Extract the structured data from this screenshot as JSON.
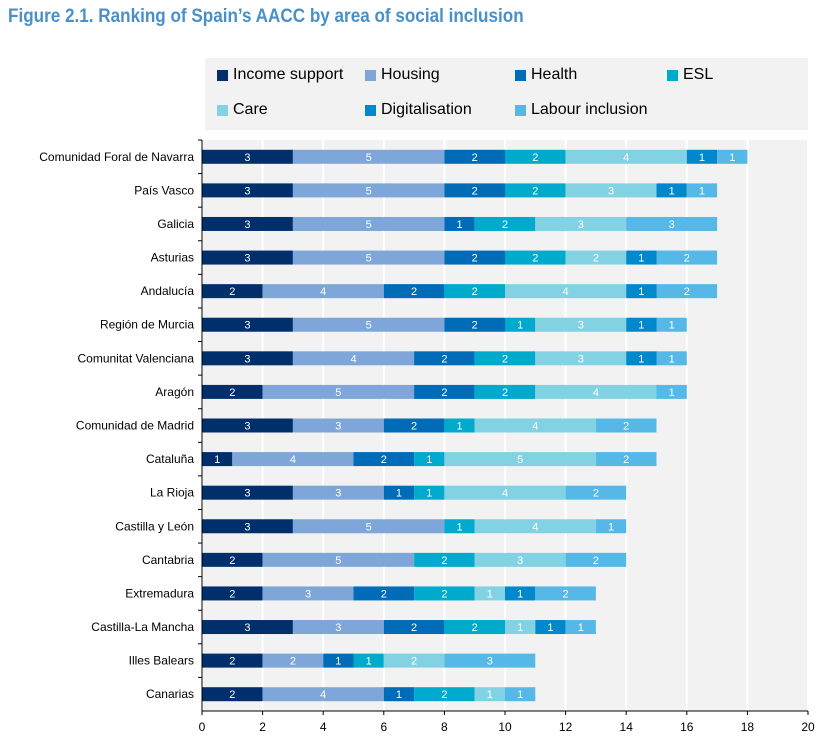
{
  "chart_data": {
    "type": "bar",
    "orientation": "horizontal",
    "stacked": true,
    "title": "Figure 2.1. Ranking of Spain’s AACC by area of social inclusion",
    "xlabel": "",
    "ylabel": "",
    "xlim": [
      0,
      20
    ],
    "xticks": [
      0,
      2,
      4,
      6,
      8,
      10,
      12,
      14,
      16,
      18,
      20
    ],
    "grid": true,
    "legend_position": "top",
    "categories": [
      "Comunidad Foral de Navarra",
      "País Vasco",
      "Galicia",
      "Asturias",
      "Andalucía",
      "Región de Murcia",
      "Comunitat Valenciana",
      "Aragón",
      "Comunidad de Madrid",
      "Cataluña",
      "La Rioja",
      "Castilla y León",
      "Cantabria",
      "Extremadura",
      "Castilla-La Mancha",
      "Illes Balears",
      "Canarias"
    ],
    "series": [
      {
        "name": "Income support",
        "color": "#002f6c",
        "values": [
          3,
          3,
          3,
          3,
          2,
          3,
          3,
          2,
          3,
          1,
          3,
          3,
          2,
          2,
          3,
          2,
          2
        ]
      },
      {
        "name": "Housing",
        "color": "#7fa6d9",
        "values": [
          5,
          5,
          5,
          5,
          4,
          5,
          4,
          5,
          3,
          4,
          3,
          5,
          5,
          3,
          3,
          2,
          4
        ]
      },
      {
        "name": "Health",
        "color": "#006bb6",
        "values": [
          2,
          2,
          1,
          2,
          2,
          2,
          2,
          2,
          2,
          2,
          1,
          0,
          0,
          2,
          2,
          1,
          1
        ]
      },
      {
        "name": "ESL",
        "color": "#00aacc",
        "values": [
          2,
          2,
          2,
          2,
          2,
          1,
          2,
          2,
          1,
          1,
          1,
          1,
          2,
          2,
          2,
          1,
          2
        ]
      },
      {
        "name": "Care",
        "color": "#83d2e3",
        "values": [
          4,
          3,
          3,
          2,
          4,
          3,
          3,
          4,
          4,
          5,
          4,
          4,
          3,
          1,
          1,
          2,
          1
        ]
      },
      {
        "name": "Digitalisation",
        "color": "#0088cc",
        "values": [
          1,
          1,
          0,
          1,
          1,
          1,
          1,
          0,
          0,
          0,
          0,
          0,
          0,
          1,
          1,
          0,
          0
        ]
      },
      {
        "name": "Labour inclusion",
        "color": "#55b8e7",
        "values": [
          1,
          1,
          3,
          2,
          2,
          1,
          1,
          1,
          2,
          2,
          2,
          1,
          2,
          2,
          1,
          3,
          1
        ]
      }
    ]
  }
}
